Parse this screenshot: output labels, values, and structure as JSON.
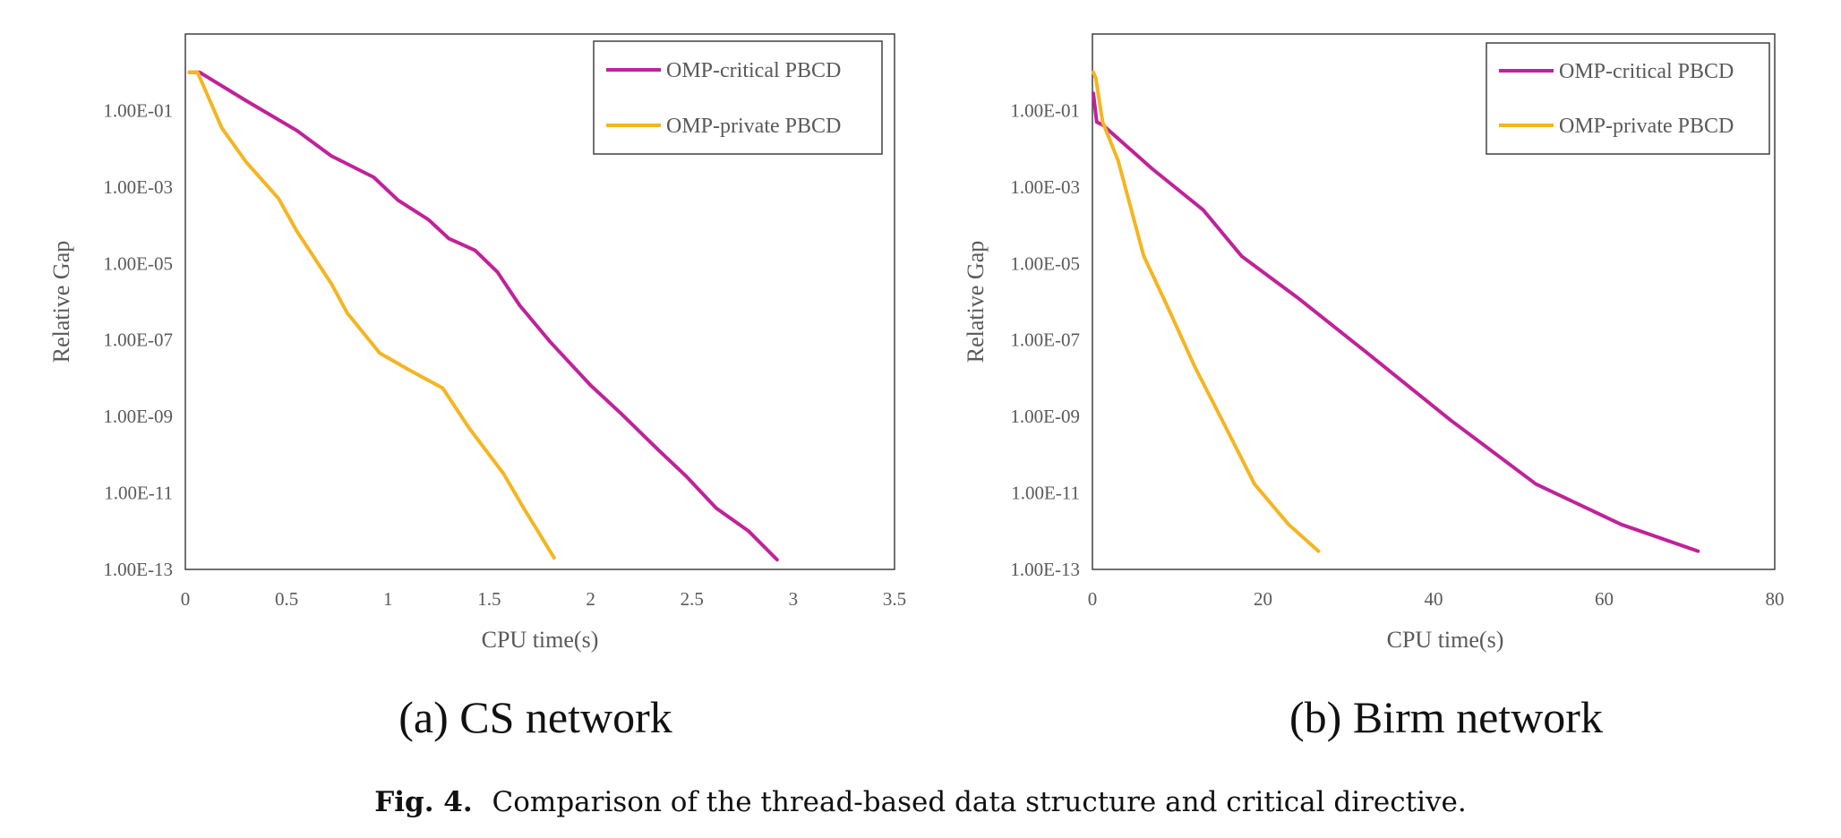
{
  "chart_data": [
    {
      "type": "line",
      "subcaption": "(a) CS network",
      "xlabel": "CPU time(s)",
      "ylabel": "Relative Gap",
      "xlim": [
        0,
        3.5
      ],
      "ylim_log10": [
        -13,
        1
      ],
      "y_scale": "log",
      "x_ticks": [
        "0",
        "0.5",
        "1",
        "1.5",
        "2",
        "2.5",
        "3",
        "3.5"
      ],
      "x_tick_values": [
        0,
        0.5,
        1,
        1.5,
        2,
        2.5,
        3,
        3.5
      ],
      "y_ticks": [
        "1.00E-01",
        "1.00E-03",
        "1.00E-05",
        "1.00E-07",
        "1.00E-09",
        "1.00E-11",
        "1.00E-13"
      ],
      "y_tick_values": [
        0.1,
        0.001,
        1e-05,
        1e-07,
        1e-09,
        1e-11,
        1e-13
      ],
      "grid": false,
      "legend": "top-right",
      "series": [
        {
          "name": "OMP-critical PBCD",
          "color": "#c0229a",
          "x": [
            0.02,
            0.07,
            0.3,
            0.55,
            0.72,
            0.93,
            1.05,
            1.2,
            1.3,
            1.43,
            1.54,
            1.65,
            1.8,
            2.0,
            2.15,
            2.33,
            2.47,
            2.62,
            2.78,
            2.92
          ],
          "y": [
            1,
            1,
            0.18,
            0.03,
            0.0065,
            0.0018,
            0.00045,
            0.00014,
            4.5e-05,
            2.2e-05,
            6e-06,
            8e-07,
            9e-08,
            6.5e-09,
            1.2e-09,
            1.4e-10,
            2.8e-11,
            4e-12,
            1e-12,
            1.8e-13
          ]
        },
        {
          "name": "OMP-private PBCD",
          "color": "#f5b521",
          "x": [
            0.02,
            0.06,
            0.18,
            0.3,
            0.46,
            0.55,
            0.72,
            0.8,
            0.96,
            1.1,
            1.27,
            1.4,
            1.57,
            1.67,
            1.74,
            1.82
          ],
          "y": [
            1,
            1,
            0.035,
            0.0045,
            0.0005,
            7e-05,
            3e-06,
            5e-07,
            4.5e-08,
            1.7e-08,
            5.5e-09,
            5e-10,
            3.2e-11,
            4e-12,
            1e-12,
            2e-13
          ]
        }
      ]
    },
    {
      "type": "line",
      "subcaption": "(b) Birm network",
      "xlabel": "CPU time(s)",
      "ylabel": "Relative Gap",
      "xlim": [
        0,
        80
      ],
      "ylim_log10": [
        -13,
        1
      ],
      "y_scale": "log",
      "x_ticks": [
        "0",
        "20",
        "40",
        "60",
        "80"
      ],
      "x_tick_values": [
        0,
        20,
        40,
        60,
        80
      ],
      "y_ticks": [
        "1.00E-01",
        "1.00E-03",
        "1.00E-05",
        "1.00E-07",
        "1.00E-09",
        "1.00E-11",
        "1.00E-13"
      ],
      "y_tick_values": [
        0.1,
        0.001,
        1e-05,
        1e-07,
        1e-09,
        1e-11,
        1e-13
      ],
      "grid": false,
      "legend": "top-right",
      "series": [
        {
          "name": "OMP-critical PBCD",
          "color": "#c0229a",
          "x": [
            0.1,
            0.5,
            1.2,
            7,
            13,
            17.5,
            24,
            32,
            42,
            52,
            62,
            71
          ],
          "y": [
            0.28,
            0.05,
            0.042,
            0.003,
            0.00025,
            1.55e-05,
            1.3e-06,
            5e-08,
            8e-10,
            1.7e-11,
            1.5e-12,
            3e-13
          ]
        },
        {
          "name": "OMP-private PBCD",
          "color": "#f5b521",
          "x": [
            0.1,
            0.4,
            1.2,
            3,
            6,
            9,
            12,
            15.5,
            19,
            23,
            26.5
          ],
          "y": [
            1,
            0.7,
            0.05,
            0.005,
            1.6e-05,
            6e-07,
            2e-08,
            6e-10,
            1.7e-11,
            1.5e-12,
            3e-13
          ]
        }
      ]
    }
  ],
  "figure_caption": {
    "label": "Fig. 4.",
    "text": "Comparison of the thread-based data structure and critical directive."
  }
}
